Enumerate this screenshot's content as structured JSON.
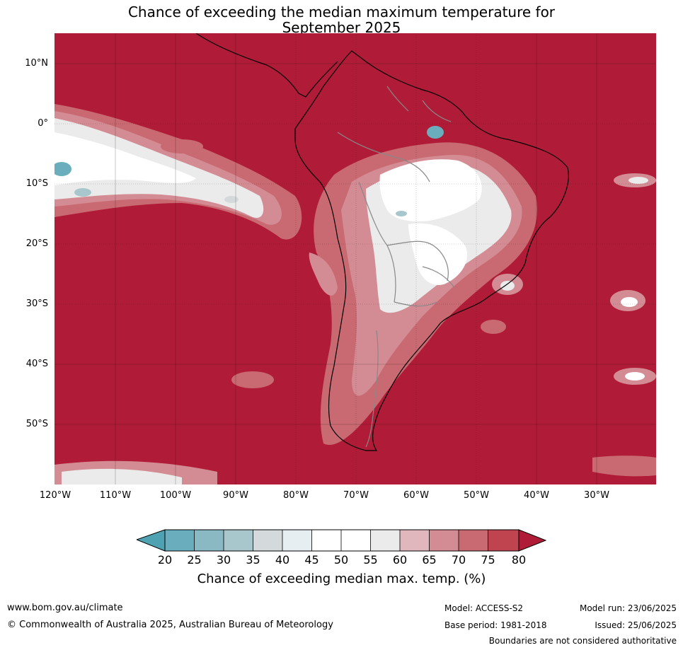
{
  "title": {
    "line1": "Chance of exceeding the median maximum temperature for",
    "line2": "September 2025"
  },
  "map": {
    "lat_labels": [
      "10°N",
      "0°",
      "10°S",
      "20°S",
      "30°S",
      "40°S",
      "50°S"
    ],
    "lon_labels": [
      "120°W",
      "110°W",
      "100°W",
      "90°W",
      "80°W",
      "70°W",
      "60°W",
      "50°W",
      "40°W",
      "30°W"
    ],
    "colors": {
      "background_high": "#b01c37",
      "c75": "#c0444f",
      "c70": "#c96a72",
      "c65": "#d48c94",
      "c60": "#e0b7bc",
      "c55": "#ebebeb",
      "c50": "#ffffff",
      "c40": "#e6eef2",
      "c35": "#d4dadc",
      "c30": "#a7c7cd",
      "c25": "#8ab8c3",
      "c20": "#6aaebd",
      "c_low": "#4ea2b1",
      "land_border": "#000000",
      "country_border": "#888888"
    }
  },
  "colorbar": {
    "ticks": [
      "20",
      "25",
      "30",
      "35",
      "40",
      "45",
      "50",
      "55",
      "60",
      "65",
      "70",
      "75",
      "80"
    ],
    "label": "Chance of exceeding median max. temp. (%)"
  },
  "footer": {
    "url": "www.bom.gov.au/climate",
    "copyright": "© Commonwealth of Australia 2025, Australian Bureau of Meteorology",
    "model": "Model: ACCESS-S2",
    "base_period": "Base period: 1981-2018",
    "model_run": "Model run: 23/06/2025",
    "issued": "Issued: 25/06/2025",
    "boundaries": "Boundaries are not considered authoritative"
  }
}
